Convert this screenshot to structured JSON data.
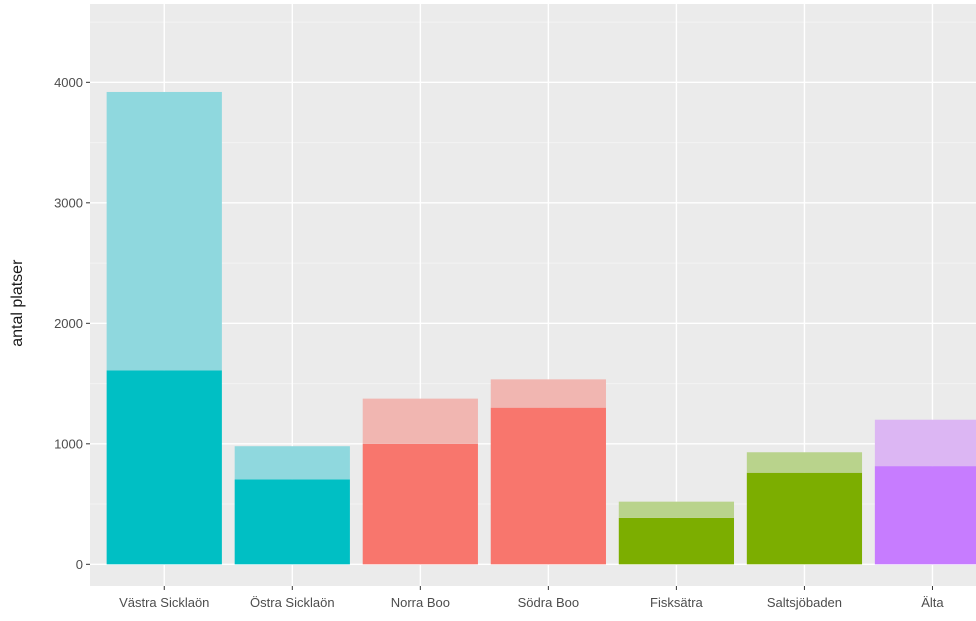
{
  "chart_data": {
    "type": "bar",
    "stacked": true,
    "title": "",
    "xlabel": "",
    "ylabel": "antal platser",
    "ylim": [
      -180,
      4650
    ],
    "yticks": [
      0,
      1000,
      2000,
      3000,
      4000
    ],
    "grid": true,
    "legend": "none",
    "categories": [
      "Västra Sicklaön",
      "Östra Sicklaön",
      "Norra Boo",
      "Södra Boo",
      "Fisksätra",
      "Saltsjöbaden",
      "Älta"
    ],
    "series": [
      {
        "values": [
          1610,
          705,
          1000,
          1300,
          385,
          760,
          815
        ],
        "colors": [
          "#00bfc4",
          "#00bfc4",
          "#f8766d",
          "#f8766d",
          "#7cae00",
          "#7cae00",
          "#c77cff"
        ]
      },
      {
        "values": [
          2310,
          275,
          375,
          235,
          135,
          170,
          385
        ],
        "colors": [
          "#8fd8de",
          "#8fd8de",
          "#f1b6b1",
          "#f1b6b1",
          "#b9d38c",
          "#b9d38c",
          "#dcb6f3"
        ]
      }
    ],
    "colors": {
      "panel": "#ebebeb",
      "grid_major": "#ffffff",
      "grid_minor": "#f3f3f3"
    }
  }
}
